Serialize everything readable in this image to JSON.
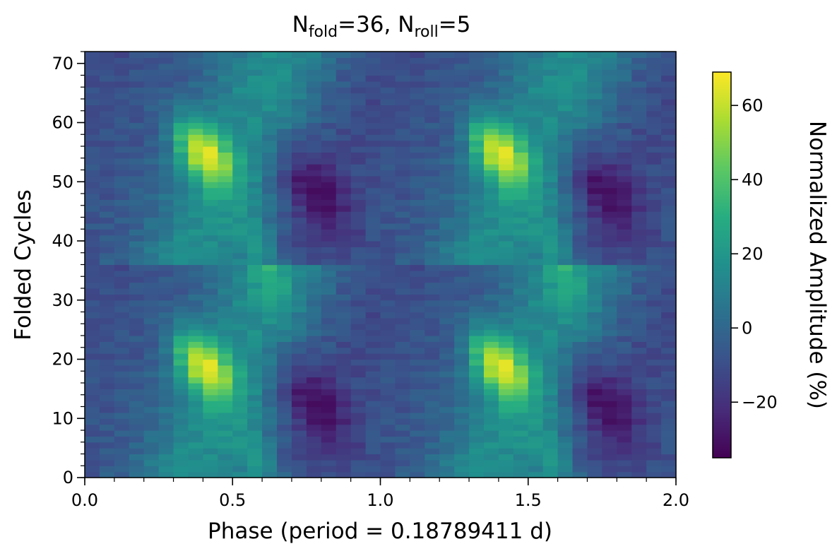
{
  "chart_data": {
    "type": "heatmap",
    "title": {
      "parts": [
        {
          "text": "N",
          "sub": false
        },
        {
          "text": "fold",
          "sub": true
        },
        {
          "text": "=36, N",
          "sub": false
        },
        {
          "text": "roll",
          "sub": true
        },
        {
          "text": "=5",
          "sub": false
        }
      ]
    },
    "xlabel": "Phase (period = 0.18789411 d)",
    "ylabel": "Folded Cycles",
    "colorbar_label": "Normalized Amplitude (%)",
    "colormap": "viridis",
    "xlim": [
      0.0,
      2.0
    ],
    "ylim": [
      0,
      72
    ],
    "xticks": [
      0.0,
      0.5,
      1.0,
      1.5,
      2.0
    ],
    "xtick_labels": [
      "0.0",
      "0.5",
      "1.0",
      "1.5",
      "2.0"
    ],
    "yticks": [
      0,
      10,
      20,
      30,
      40,
      50,
      60,
      70
    ],
    "ytick_labels": [
      "0",
      "10",
      "20",
      "30",
      "40",
      "50",
      "60",
      "70"
    ],
    "color_range": [
      -35,
      69
    ],
    "colorbar_ticks": [
      60,
      40,
      20,
      0,
      -20
    ],
    "colorbar_tick_labels": [
      "60",
      "40",
      "20",
      "0",
      "−20"
    ],
    "grid": false,
    "n_phase_bins": 40,
    "n_cycle_bins": 72,
    "bin_width_phase": 0.05,
    "bin_height_cycles": 1,
    "pattern_period_phase": 1.0,
    "pattern_period_cycles": 36,
    "features": [
      {
        "kind": "peak",
        "phase": 0.4,
        "cycles": 55,
        "value": 68
      },
      {
        "kind": "peak",
        "phase": 0.4,
        "cycles": 19,
        "value": 68
      },
      {
        "kind": "peak",
        "phase": 1.4,
        "cycles": 55,
        "value": 68
      },
      {
        "kind": "peak",
        "phase": 1.4,
        "cycles": 19,
        "value": 68
      },
      {
        "kind": "trough",
        "phase": 0.77,
        "cycles": 49,
        "value": -34
      },
      {
        "kind": "trough",
        "phase": 0.77,
        "cycles": 13,
        "value": -34
      },
      {
        "kind": "trough",
        "phase": 1.75,
        "cycles": 49,
        "value": -34
      },
      {
        "kind": "trough",
        "phase": 1.75,
        "cycles": 13,
        "value": -34
      }
    ]
  }
}
